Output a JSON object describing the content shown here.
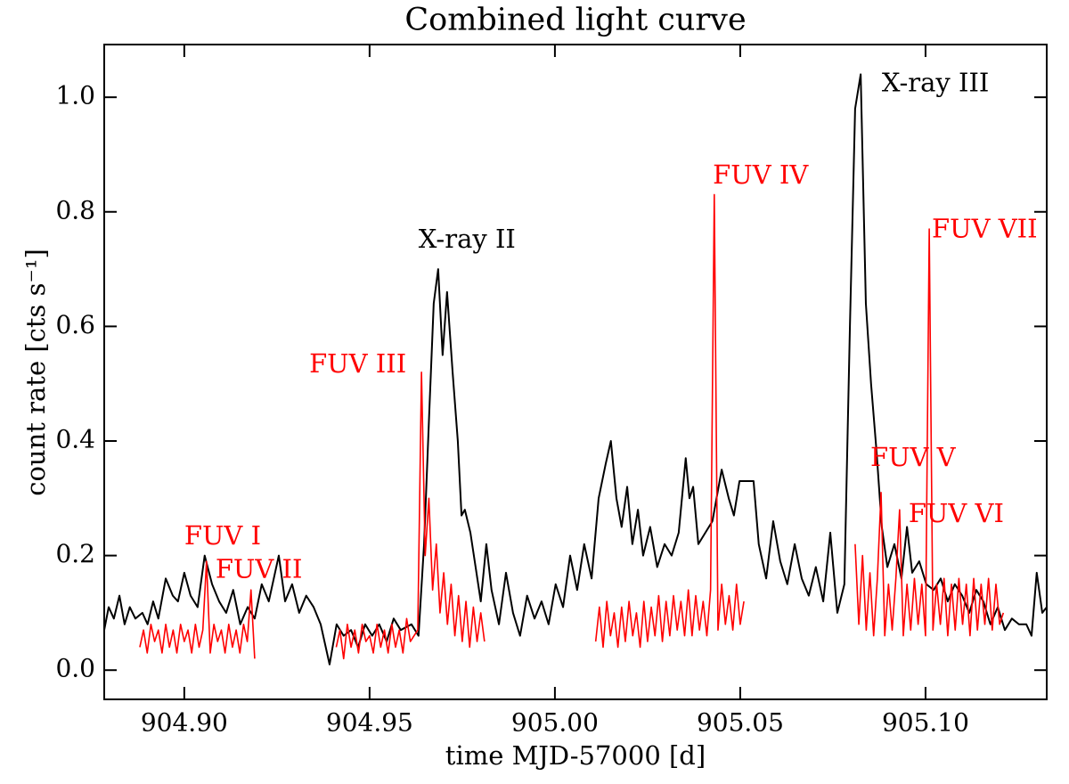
{
  "chart_data": {
    "type": "line",
    "title": "Combined light curve",
    "xlabel": "time MJD-57000 [d]",
    "ylabel": "count rate [cts s⁻¹]",
    "xlim": [
      904.8784,
      905.1327
    ],
    "ylim": [
      -0.051,
      1.092
    ],
    "xticks": [
      {
        "value": 904.9,
        "label": "904.90"
      },
      904.95,
      {
        "value": 905.0,
        "label": "905.00"
      },
      905.05,
      {
        "value": 905.1,
        "label": "905.10"
      }
    ],
    "yticks": [
      {
        "value": 0.0,
        "label": "0.0"
      },
      0.2,
      0.4,
      0.6,
      0.8,
      {
        "value": 1.0,
        "label": "1.0"
      }
    ],
    "grid": false,
    "series": [
      {
        "name": "X-ray",
        "color": "#000000",
        "x": [
          904.8784,
          904.8796,
          904.881,
          904.8825,
          904.8839,
          904.8853,
          904.8868,
          904.8887,
          904.8901,
          904.8916,
          904.893,
          904.895,
          904.8969,
          904.8983,
          904.9,
          904.9017,
          904.9036,
          904.9055,
          904.9075,
          904.9094,
          904.9113,
          904.9132,
          904.9151,
          904.9171,
          904.919,
          904.9209,
          904.9228,
          904.9255,
          904.9272,
          904.9291,
          904.931,
          904.9329,
          904.9349,
          904.9368,
          904.9392,
          904.9411,
          904.943,
          904.945,
          904.9469,
          904.9488,
          904.9507,
          904.9526,
          904.9546,
          904.9565,
          904.9584,
          904.9613,
          904.9632,
          904.9647,
          904.9661,
          904.9673,
          904.9685,
          904.9697,
          904.9709,
          904.9724,
          904.9738,
          904.9748,
          904.9757,
          904.9772,
          904.9786,
          904.98,
          904.9815,
          904.9829,
          904.9849,
          904.9868,
          904.9887,
          904.9906,
          904.9925,
          904.9945,
          904.9964,
          904.9983,
          905.0002,
          905.0022,
          905.0041,
          905.006,
          905.0079,
          905.0099,
          905.0118,
          905.0137,
          905.0151,
          905.0166,
          905.018,
          905.0195,
          905.0209,
          905.0224,
          905.0238,
          905.0257,
          905.0276,
          905.0296,
          905.0315,
          905.0334,
          905.0353,
          905.0363,
          905.0373,
          905.0387,
          905.0406,
          905.0425,
          905.045,
          905.0469,
          905.0483,
          905.0498,
          905.0536,
          905.055,
          905.057,
          905.0589,
          905.0608,
          905.0627,
          905.0647,
          905.0666,
          905.0685,
          905.0704,
          905.0724,
          905.0743,
          905.0762,
          905.0781,
          905.0796,
          905.081,
          905.0825,
          905.0839,
          905.0853,
          905.0868,
          905.0882,
          905.0897,
          905.0916,
          905.0935,
          905.095,
          905.0964,
          905.0983,
          905.1002,
          905.1022,
          905.1041,
          905.106,
          905.1079,
          905.1099,
          905.1118,
          905.1137,
          905.1156,
          905.1175,
          905.1195,
          905.1214,
          905.1233,
          905.1252,
          905.1272,
          905.1286,
          905.13,
          905.1315,
          905.1327
        ],
        "values": [
          0.07,
          0.11,
          0.09,
          0.13,
          0.08,
          0.11,
          0.09,
          0.1,
          0.08,
          0.12,
          0.09,
          0.16,
          0.13,
          0.12,
          0.17,
          0.13,
          0.11,
          0.2,
          0.15,
          0.12,
          0.1,
          0.14,
          0.08,
          0.11,
          0.09,
          0.15,
          0.12,
          0.2,
          0.12,
          0.15,
          0.1,
          0.13,
          0.11,
          0.08,
          0.01,
          0.08,
          0.06,
          0.07,
          0.04,
          0.08,
          0.06,
          0.08,
          0.05,
          0.09,
          0.07,
          0.08,
          0.06,
          0.22,
          0.45,
          0.64,
          0.7,
          0.55,
          0.66,
          0.52,
          0.4,
          0.27,
          0.28,
          0.24,
          0.18,
          0.12,
          0.22,
          0.14,
          0.08,
          0.17,
          0.1,
          0.06,
          0.13,
          0.09,
          0.12,
          0.08,
          0.15,
          0.11,
          0.2,
          0.14,
          0.22,
          0.16,
          0.3,
          0.36,
          0.4,
          0.3,
          0.25,
          0.32,
          0.22,
          0.28,
          0.2,
          0.25,
          0.18,
          0.22,
          0.2,
          0.24,
          0.37,
          0.3,
          0.32,
          0.22,
          0.24,
          0.26,
          0.35,
          0.3,
          0.27,
          0.33,
          0.33,
          0.22,
          0.16,
          0.26,
          0.19,
          0.15,
          0.22,
          0.16,
          0.13,
          0.18,
          0.12,
          0.24,
          0.1,
          0.15,
          0.6,
          0.98,
          1.04,
          0.64,
          0.5,
          0.38,
          0.25,
          0.18,
          0.22,
          0.16,
          0.25,
          0.17,
          0.19,
          0.15,
          0.14,
          0.16,
          0.12,
          0.15,
          0.13,
          0.1,
          0.14,
          0.12,
          0.08,
          0.11,
          0.07,
          0.09,
          0.08,
          0.08,
          0.06,
          0.17,
          0.1,
          0.11
        ]
      },
      {
        "name": "FUV",
        "color": "#ff0000",
        "x": [
          904.888,
          904.889,
          904.89,
          904.891,
          904.892,
          904.893,
          904.894,
          904.895,
          904.896,
          904.897,
          904.898,
          904.899,
          904.9,
          904.901,
          904.902,
          904.903,
          904.904,
          904.905,
          904.906,
          904.907,
          904.908,
          904.909,
          904.91,
          904.911,
          904.912,
          904.913,
          904.914,
          904.915,
          904.916,
          904.917,
          904.918,
          904.919,
          904.93,
          904.941,
          904.942,
          904.943,
          904.944,
          904.945,
          904.946,
          904.947,
          904.948,
          904.949,
          904.95,
          904.951,
          904.952,
          904.953,
          904.954,
          904.955,
          904.956,
          904.957,
          904.958,
          904.959,
          904.96,
          904.961,
          904.962,
          904.963,
          904.964,
          904.965,
          904.966,
          904.967,
          904.968,
          904.969,
          904.97,
          904.971,
          904.972,
          904.973,
          904.974,
          904.975,
          904.976,
          904.977,
          904.978,
          904.979,
          904.98,
          904.981,
          904.996,
          905.011,
          905.012,
          905.013,
          905.014,
          905.015,
          905.016,
          905.017,
          905.018,
          905.019,
          905.02,
          905.021,
          905.022,
          905.023,
          905.024,
          905.025,
          905.026,
          905.027,
          905.028,
          905.029,
          905.03,
          905.031,
          905.032,
          905.033,
          905.034,
          905.035,
          905.036,
          905.037,
          905.038,
          905.039,
          905.04,
          905.041,
          905.042,
          905.043,
          905.044,
          905.045,
          905.046,
          905.047,
          905.048,
          905.049,
          905.05,
          905.051,
          905.066,
          905.081,
          905.082,
          905.083,
          905.084,
          905.085,
          905.086,
          905.087,
          905.088,
          905.089,
          905.09,
          905.091,
          905.092,
          905.093,
          905.094,
          905.095,
          905.096,
          905.097,
          905.098,
          905.099,
          905.1,
          905.101,
          905.102,
          905.103,
          905.104,
          905.105,
          905.106,
          905.107,
          905.108,
          905.109,
          905.11,
          905.111,
          905.112,
          905.113,
          905.114,
          905.115,
          905.116,
          905.117,
          905.118,
          905.119,
          905.12,
          905.121
        ],
        "values": [
          0.04,
          0.07,
          0.03,
          0.08,
          0.05,
          0.07,
          0.03,
          0.08,
          0.04,
          0.07,
          0.03,
          0.08,
          0.05,
          0.07,
          0.03,
          0.08,
          0.04,
          0.07,
          0.19,
          0.03,
          0.08,
          0.05,
          0.07,
          0.03,
          0.08,
          0.04,
          0.07,
          0.03,
          0.08,
          0.05,
          0.14,
          0.02,
          null,
          0.04,
          0.07,
          0.02,
          0.08,
          0.04,
          0.07,
          0.03,
          0.08,
          0.05,
          0.06,
          0.03,
          0.08,
          0.04,
          0.07,
          0.03,
          0.08,
          0.04,
          0.07,
          0.03,
          0.09,
          0.05,
          0.06,
          0.07,
          0.52,
          0.2,
          0.3,
          0.14,
          0.22,
          0.1,
          0.17,
          0.08,
          0.15,
          0.06,
          0.13,
          0.05,
          0.12,
          0.04,
          0.11,
          0.05,
          0.1,
          0.05,
          null,
          0.05,
          0.11,
          0.04,
          0.12,
          0.06,
          0.1,
          0.04,
          0.11,
          0.05,
          0.12,
          0.06,
          0.1,
          0.04,
          0.12,
          0.05,
          0.11,
          0.06,
          0.13,
          0.05,
          0.12,
          0.06,
          0.13,
          0.07,
          0.12,
          0.06,
          0.14,
          0.06,
          0.13,
          0.07,
          0.12,
          0.06,
          0.14,
          0.83,
          0.07,
          0.15,
          0.08,
          0.13,
          0.07,
          0.15,
          0.08,
          0.12,
          null,
          0.22,
          0.08,
          0.2,
          0.07,
          0.17,
          0.06,
          0.16,
          0.31,
          0.06,
          0.15,
          0.07,
          0.16,
          0.28,
          0.06,
          0.15,
          0.07,
          0.16,
          0.08,
          0.15,
          0.06,
          0.77,
          0.07,
          0.15,
          0.08,
          0.16,
          0.06,
          0.15,
          0.07,
          0.16,
          0.08,
          0.15,
          0.06,
          0.16,
          0.07,
          0.15,
          0.08,
          0.16,
          0.07,
          0.15,
          0.08,
          0.1
        ]
      }
    ],
    "annotations": [
      {
        "text": "FUV I",
        "x": 904.9,
        "y": 0.232,
        "color": "#ff0000"
      },
      {
        "text": "FUV II",
        "x": 904.9084,
        "y": 0.174,
        "color": "#ff0000"
      },
      {
        "text": "FUV III",
        "x": 904.9337,
        "y": 0.532,
        "color": "#ff0000"
      },
      {
        "text": "X-ray II",
        "x": 904.9632,
        "y": 0.75,
        "color": "#000000"
      },
      {
        "text": "FUV IV",
        "x": 905.0426,
        "y": 0.862,
        "color": "#ff0000"
      },
      {
        "text": "X-ray III",
        "x": 905.0882,
        "y": 1.023,
        "color": "#000000"
      },
      {
        "text": "FUV VII",
        "x": 905.1017,
        "y": 0.768,
        "color": "#ff0000"
      },
      {
        "text": "FUV V",
        "x": 905.0851,
        "y": 0.369,
        "color": "#ff0000"
      },
      {
        "text": "FUV VI",
        "x": 905.0954,
        "y": 0.271,
        "color": "#ff0000"
      }
    ]
  }
}
